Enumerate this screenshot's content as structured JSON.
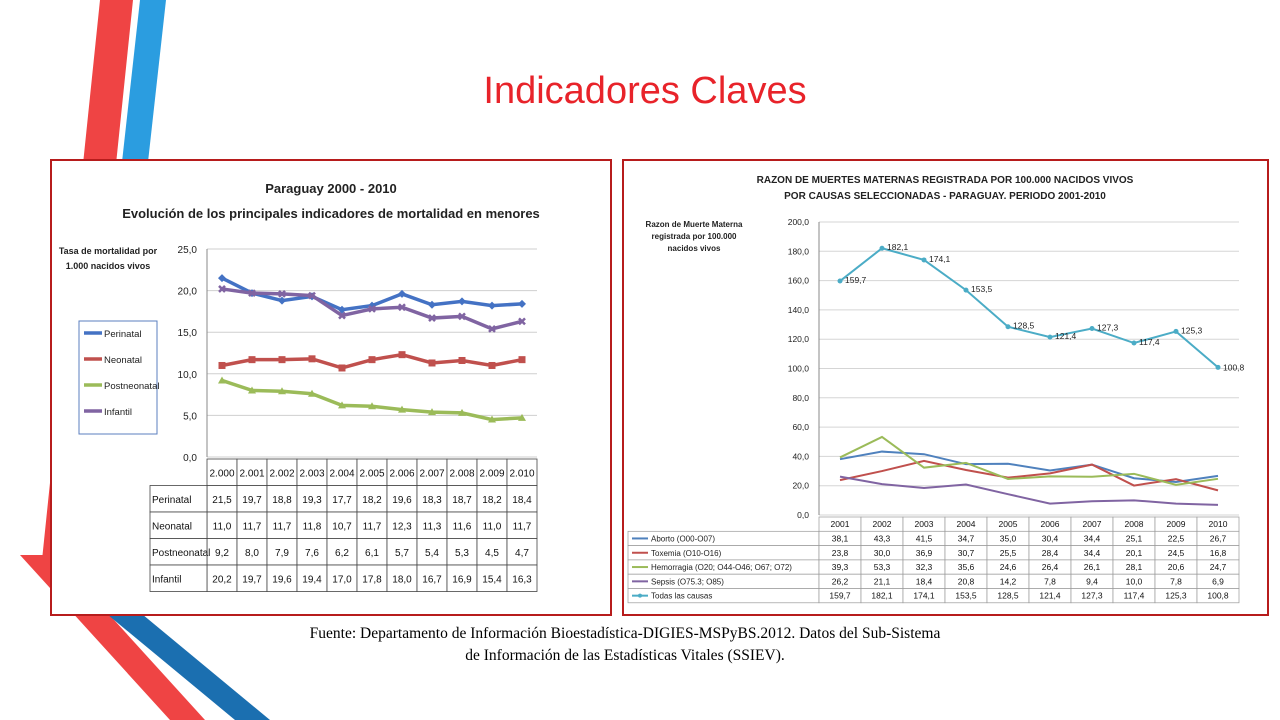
{
  "slide": {
    "title": "Indicadores Claves",
    "source_line1": "Fuente: Departamento de Información Bioestadística-DIGIES-MSPyBS.2012. Datos del Sub-Sistema",
    "source_line2": "de Información de las Estadísticas Vitales (SSIEV).",
    "accent_colors": {
      "red": "#ef4444",
      "blue": "#2b9de0",
      "dark_blue": "#1b6fb0"
    }
  },
  "chart_data": [
    {
      "type": "line",
      "title": "Paraguay 2000 - 2010",
      "subtitle": "Evolución de los principales indicadores de mortalidad en menores",
      "ylabel": "Tasa de mortalidad por 1.000 nacidos vivos",
      "ylim": [
        0,
        25
      ],
      "yticks": [
        "25,0",
        "20,0",
        "15,0",
        "10,0",
        "5,0",
        "0,0"
      ],
      "categories": [
        "2.000",
        "2.001",
        "2.002",
        "2.003",
        "2.004",
        "2.005",
        "2.006",
        "2.007",
        "2.008",
        "2.009",
        "2.010"
      ],
      "legend_position": "left",
      "series": [
        {
          "name": "Perinatal",
          "color": "#4472c4",
          "values": [
            21.5,
            19.7,
            18.8,
            19.3,
            17.7,
            18.2,
            19.6,
            18.3,
            18.7,
            18.2,
            18.4
          ],
          "labels": [
            "21,5",
            "19,7",
            "18,8",
            "19,3",
            "17,7",
            "18,2",
            "19,6",
            "18,3",
            "18,7",
            "18,2",
            "18,4"
          ]
        },
        {
          "name": "Neonatal",
          "color": "#c0504d",
          "values": [
            11.0,
            11.7,
            11.7,
            11.8,
            10.7,
            11.7,
            12.3,
            11.3,
            11.6,
            11.0,
            11.7
          ],
          "labels": [
            "11,0",
            "11,7",
            "11,7",
            "11,8",
            "10,7",
            "11,7",
            "12,3",
            "11,3",
            "11,6",
            "11,0",
            "11,7"
          ]
        },
        {
          "name": "Postneonatal",
          "color": "#9bbb59",
          "values": [
            9.2,
            8.0,
            7.9,
            7.6,
            6.2,
            6.1,
            5.7,
            5.4,
            5.3,
            4.5,
            4.7
          ],
          "labels": [
            "9,2",
            "8,0",
            "7,9",
            "7,6",
            "6,2",
            "6,1",
            "5,7",
            "5,4",
            "5,3",
            "4,5",
            "4,7"
          ]
        },
        {
          "name": "Infantil",
          "color": "#8064a2",
          "values": [
            20.2,
            19.7,
            19.6,
            19.4,
            17.0,
            17.8,
            18.0,
            16.7,
            16.9,
            15.4,
            16.3
          ],
          "labels": [
            "20,2",
            "19,7",
            "19,6",
            "19,4",
            "17,0",
            "17,8",
            "18,0",
            "16,7",
            "16,9",
            "15,4",
            "16,3"
          ]
        }
      ]
    },
    {
      "type": "line",
      "title": "RAZON DE MUERTES MATERNAS REGISTRADA  POR 100.000 NACIDOS VIVOS",
      "subtitle": "POR CAUSAS SELECCIONADAS - PARAGUAY. PERIODO 2001-2010",
      "ylabel": "Razon de Muerte Materna registrada por 100.000 nacidos vivos",
      "ylim": [
        0,
        200
      ],
      "yticks": [
        "200,0",
        "180,0",
        "160,0",
        "140,0",
        "120,0",
        "100,0",
        "80,0",
        "60,0",
        "40,0",
        "20,0",
        "0,0"
      ],
      "categories": [
        "2001",
        "2002",
        "2003",
        "2004",
        "2005",
        "2006",
        "2007",
        "2008",
        "2009",
        "2010"
      ],
      "series": [
        {
          "name": "Aborto  (O00-O07)",
          "color": "#4f81bd",
          "values": [
            38.1,
            43.3,
            41.5,
            34.7,
            35.0,
            30.4,
            34.4,
            25.1,
            22.5,
            26.7
          ],
          "labels": [
            "38,1",
            "43,3",
            "41,5",
            "34,7",
            "35,0",
            "30,4",
            "34,4",
            "25,1",
            "22,5",
            "26,7"
          ]
        },
        {
          "name": "Toxemia  (O10-O16)",
          "color": "#c0504d",
          "values": [
            23.8,
            30.0,
            36.9,
            30.7,
            25.5,
            28.4,
            34.4,
            20.1,
            24.5,
            16.8
          ],
          "labels": [
            "23,8",
            "30,0",
            "36,9",
            "30,7",
            "25,5",
            "28,4",
            "34,4",
            "20,1",
            "24,5",
            "16,8"
          ]
        },
        {
          "name": "Hemorragia  (O20; O44-O46; O67; O72)",
          "color": "#9bbb59",
          "values": [
            39.3,
            53.3,
            32.3,
            35.6,
            24.6,
            26.4,
            26.1,
            28.1,
            20.6,
            24.7
          ],
          "labels": [
            "39,3",
            "53,3",
            "32,3",
            "35,6",
            "24,6",
            "26,4",
            "26,1",
            "28,1",
            "20,6",
            "24,7"
          ]
        },
        {
          "name": "Sepsis  (O75.3; O85)",
          "color": "#8064a2",
          "values": [
            26.2,
            21.1,
            18.4,
            20.8,
            14.2,
            7.8,
            9.4,
            10.0,
            7.8,
            6.9
          ],
          "labels": [
            "26,2",
            "21,1",
            "18,4",
            "20,8",
            "14,2",
            "7,8",
            "9,4",
            "10,0",
            "7,8",
            "6,9"
          ]
        },
        {
          "name": "Todas las causas",
          "color": "#4bacc6",
          "values": [
            159.7,
            182.1,
            174.1,
            153.5,
            128.5,
            121.4,
            127.3,
            117.4,
            125.3,
            100.8
          ],
          "labels": [
            "159,7",
            "182,1",
            "174,1",
            "153,5",
            "128,5",
            "121,4",
            "127,3",
            "117,4",
            "125,3",
            "100,8"
          ]
        }
      ]
    }
  ]
}
